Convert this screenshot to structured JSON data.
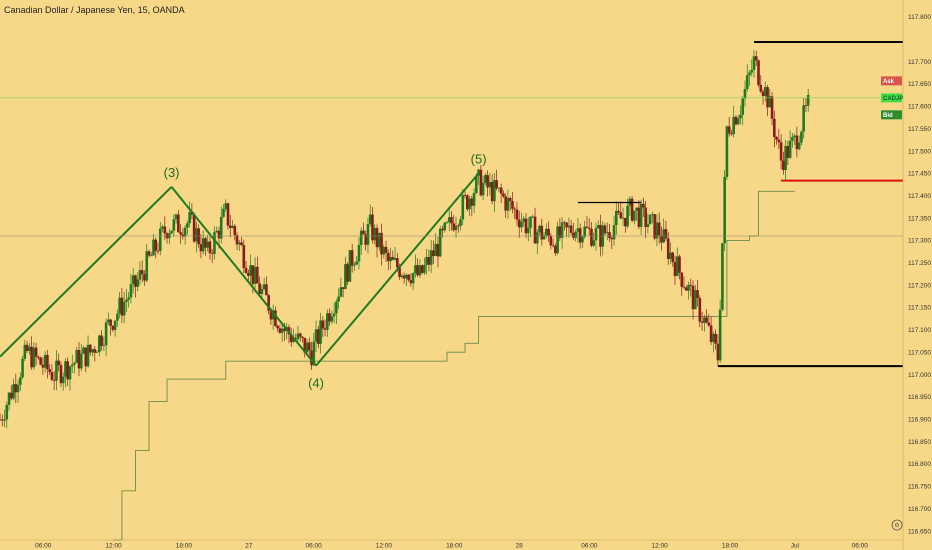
{
  "header": {
    "title": "Canadian Dollar / Japanese Yen, 15, OANDA"
  },
  "colors": {
    "background": "#f7d888",
    "candle_up": "#1f7a1f",
    "candle_down": "#8b1a1a",
    "wave_line": "#1f7a1f",
    "stop_line": "#6e8a4a",
    "level_black": "#000000",
    "level_red": "#e01010",
    "bid_badge": "#2e8b2e",
    "ask_badge": "#d9534f",
    "current_badge": "#44dd44"
  },
  "chart_data": {
    "type": "candlestick",
    "title": "Canadian Dollar / Japanese Yen, 15, OANDA",
    "y_range": [
      116.63,
      117.82
    ],
    "y_ticks": [
      "117.800",
      "117.700",
      "117.650",
      "117.600",
      "117.550",
      "117.500",
      "117.450",
      "117.400",
      "117.350",
      "117.300",
      "117.250",
      "117.200",
      "117.150",
      "117.100",
      "117.050",
      "117.000",
      "116.950",
      "116.900",
      "116.850",
      "116.800",
      "116.750",
      "116.700",
      "116.650"
    ],
    "x_ticks": [
      "06:00",
      "12:00",
      "18:00",
      "27",
      "06:00",
      "12:00",
      "18:00",
      "28",
      "06:00",
      "12:00",
      "18:00",
      "Jul",
      "06:00"
    ],
    "price_path": [
      {
        "t": 0,
        "p": 116.9
      },
      {
        "t": 6,
        "p": 117.05
      },
      {
        "t": 12,
        "p": 117.0
      },
      {
        "t": 20,
        "p": 117.05
      },
      {
        "t": 30,
        "p": 117.2
      },
      {
        "t": 37,
        "p": 117.33
      },
      {
        "t": 42,
        "p": 117.34
      },
      {
        "t": 46,
        "p": 117.27
      },
      {
        "t": 50,
        "p": 117.36
      },
      {
        "t": 57,
        "p": 117.2
      },
      {
        "t": 63,
        "p": 117.1
      },
      {
        "t": 69,
        "p": 117.05
      },
      {
        "t": 78,
        "p": 117.26
      },
      {
        "t": 82,
        "p": 117.33
      },
      {
        "t": 86,
        "p": 117.25
      },
      {
        "t": 93,
        "p": 117.22
      },
      {
        "t": 100,
        "p": 117.34
      },
      {
        "t": 106,
        "p": 117.43
      },
      {
        "t": 111,
        "p": 117.4
      },
      {
        "t": 117,
        "p": 117.33
      },
      {
        "t": 123,
        "p": 117.3
      },
      {
        "t": 127,
        "p": 117.33
      },
      {
        "t": 133,
        "p": 117.31
      },
      {
        "t": 140,
        "p": 117.37
      },
      {
        "t": 146,
        "p": 117.32
      },
      {
        "t": 152,
        "p": 117.2
      },
      {
        "t": 156,
        "p": 117.12
      },
      {
        "t": 159,
        "p": 117.04
      },
      {
        "t": 161,
        "p": 117.55
      },
      {
        "t": 164,
        "p": 117.6
      },
      {
        "t": 167,
        "p": 117.7
      },
      {
        "t": 170,
        "p": 117.62
      },
      {
        "t": 173,
        "p": 117.48
      },
      {
        "t": 176,
        "p": 117.52
      },
      {
        "t": 179,
        "p": 117.6
      }
    ],
    "support_line": [
      {
        "t": 25,
        "p": 116.63
      },
      {
        "t": 27,
        "p": 116.74
      },
      {
        "t": 30,
        "p": 116.83
      },
      {
        "t": 33,
        "p": 116.94
      },
      {
        "t": 37,
        "p": 116.99
      },
      {
        "t": 48,
        "p": 116.99
      },
      {
        "t": 50,
        "p": 117.03
      },
      {
        "t": 67,
        "p": 117.03
      },
      {
        "t": 70,
        "p": 117.03
      },
      {
        "t": 97,
        "p": 117.03
      },
      {
        "t": 99,
        "p": 117.05
      },
      {
        "t": 103,
        "p": 117.07
      },
      {
        "t": 106,
        "p": 117.13
      },
      {
        "t": 158,
        "p": 117.13
      },
      {
        "t": 161,
        "p": 117.3
      },
      {
        "t": 166,
        "p": 117.31
      },
      {
        "t": 168,
        "p": 117.41
      },
      {
        "t": 176,
        "p": 117.41
      }
    ],
    "wave_lines": [
      [
        {
          "t": 0,
          "p": 117.04
        },
        {
          "t": 38,
          "p": 117.42
        }
      ],
      [
        {
          "t": 38,
          "p": 117.42
        },
        {
          "t": 70,
          "p": 117.02
        }
      ],
      [
        {
          "t": 70,
          "p": 117.02
        },
        {
          "t": 106,
          "p": 117.45
        }
      ]
    ],
    "wave_labels": [
      {
        "text": "(3)",
        "t": 38,
        "p": 117.42,
        "pos": "above"
      },
      {
        "text": "(4)",
        "t": 70,
        "p": 117.02,
        "pos": "below"
      },
      {
        "text": "(5)",
        "t": 106,
        "p": 117.45,
        "pos": "above"
      }
    ],
    "horizontal_levels": [
      {
        "price": 117.744,
        "label": "117.744",
        "t_start": 167,
        "color": "black",
        "width": 2
      },
      {
        "price": 117.434,
        "label": "117.434",
        "t_start": 173,
        "color": "red",
        "width": 2
      },
      {
        "price": 117.019,
        "label": "117.019",
        "t_start": 159,
        "color": "black",
        "width": 2
      },
      {
        "price": 117.31,
        "label": "117.310",
        "t_start": 0,
        "color": "thin",
        "width": 0.6
      }
    ],
    "small_segment": {
      "t_start": 128,
      "t_end": 142,
      "p": 117.385
    },
    "current_price_line": 117.619,
    "price_badges": [
      {
        "label": "Ask",
        "value": "117.657",
        "price": 117.657,
        "kind": "ask"
      },
      {
        "label": "CADJPY",
        "value": "117.619",
        "price": 117.619,
        "kind": "current"
      },
      {
        "label": "Bid",
        "value": "117.581",
        "price": 117.581,
        "kind": "bid"
      }
    ],
    "t_range": [
      0,
      200
    ]
  },
  "footer": {
    "settings_icon": "gear-icon"
  }
}
